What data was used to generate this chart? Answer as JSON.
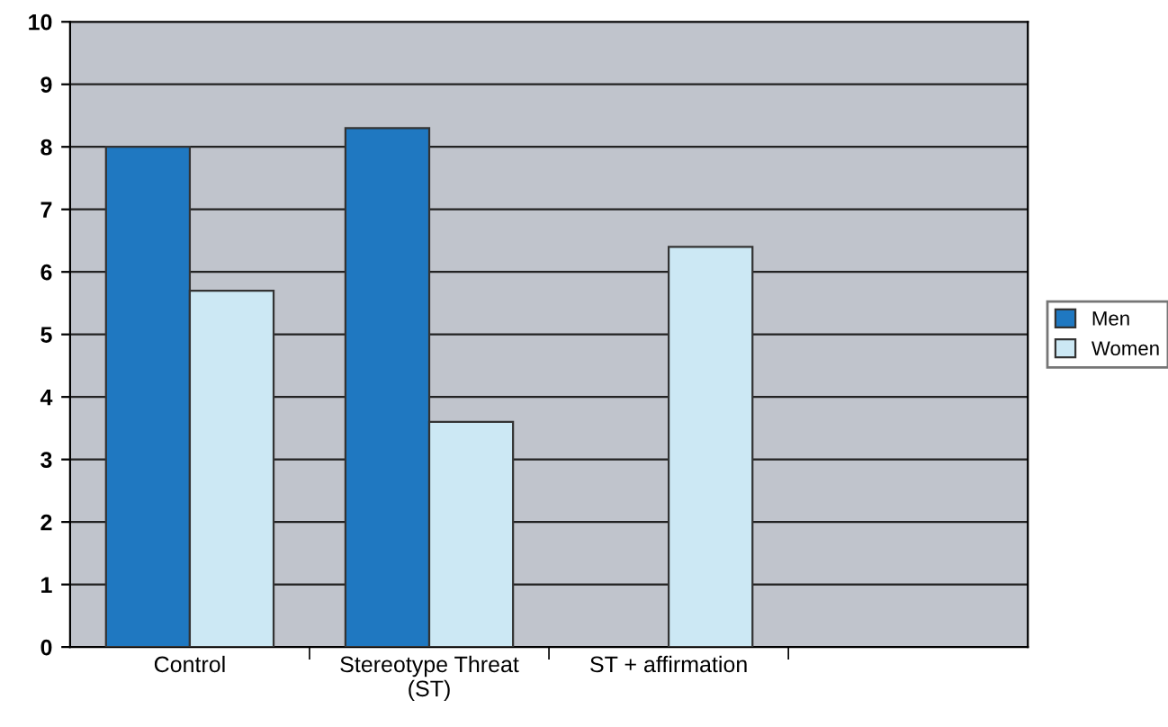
{
  "chart_data": {
    "type": "bar",
    "categories": [
      "Control",
      "Stereotype Threat\n(ST)",
      "ST + affirmation",
      null
    ],
    "series": [
      {
        "name": "Men",
        "color": "#1f78c1",
        "values": [
          8.0,
          8.3,
          null,
          null
        ]
      },
      {
        "name": "Women",
        "color": "#cce8f4",
        "values": [
          5.7,
          3.6,
          6.4,
          null
        ]
      }
    ],
    "ylim": [
      0,
      10
    ],
    "yticks": [
      0,
      1,
      2,
      3,
      4,
      5,
      6,
      7,
      8,
      9,
      10
    ],
    "grid": "y",
    "legend": "right"
  }
}
